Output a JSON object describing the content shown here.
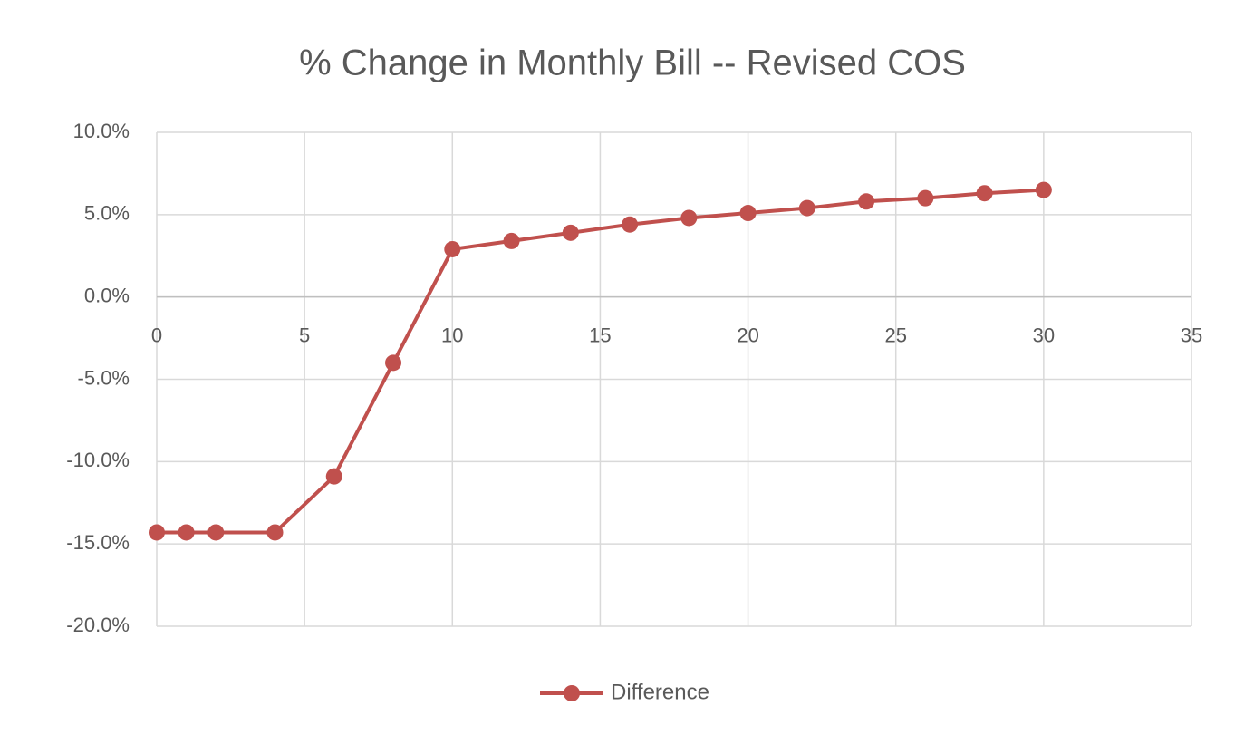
{
  "chart_data": {
    "type": "line",
    "title": "% Change in Monthly Bill -- Revised COS",
    "x": [
      0,
      1,
      2,
      4,
      6,
      8,
      10,
      12,
      14,
      16,
      18,
      20,
      22,
      24,
      26,
      28,
      30
    ],
    "series": [
      {
        "name": "Difference",
        "color": "#c0504d",
        "values": [
          -14.3,
          -14.3,
          -14.3,
          -14.3,
          -10.9,
          -4.0,
          2.9,
          3.4,
          3.9,
          4.4,
          4.8,
          5.1,
          5.4,
          5.8,
          6.0,
          6.3,
          6.5
        ]
      }
    ],
    "xlim": [
      0,
      35
    ],
    "xticks": [
      0,
      5,
      10,
      15,
      20,
      25,
      30,
      35
    ],
    "ylim": [
      -20,
      10
    ],
    "yticks": [
      {
        "value": -20,
        "label": "-20.0%"
      },
      {
        "value": -15,
        "label": "-15.0%"
      },
      {
        "value": -10,
        "label": "-10.0%"
      },
      {
        "value": -5,
        "label": "-5.0%"
      },
      {
        "value": 0,
        "label": "0.0%"
      },
      {
        "value": 5,
        "label": "5.0%"
      },
      {
        "value": 10,
        "label": "10.0%"
      }
    ],
    "grid": true,
    "legend": "bottom"
  }
}
